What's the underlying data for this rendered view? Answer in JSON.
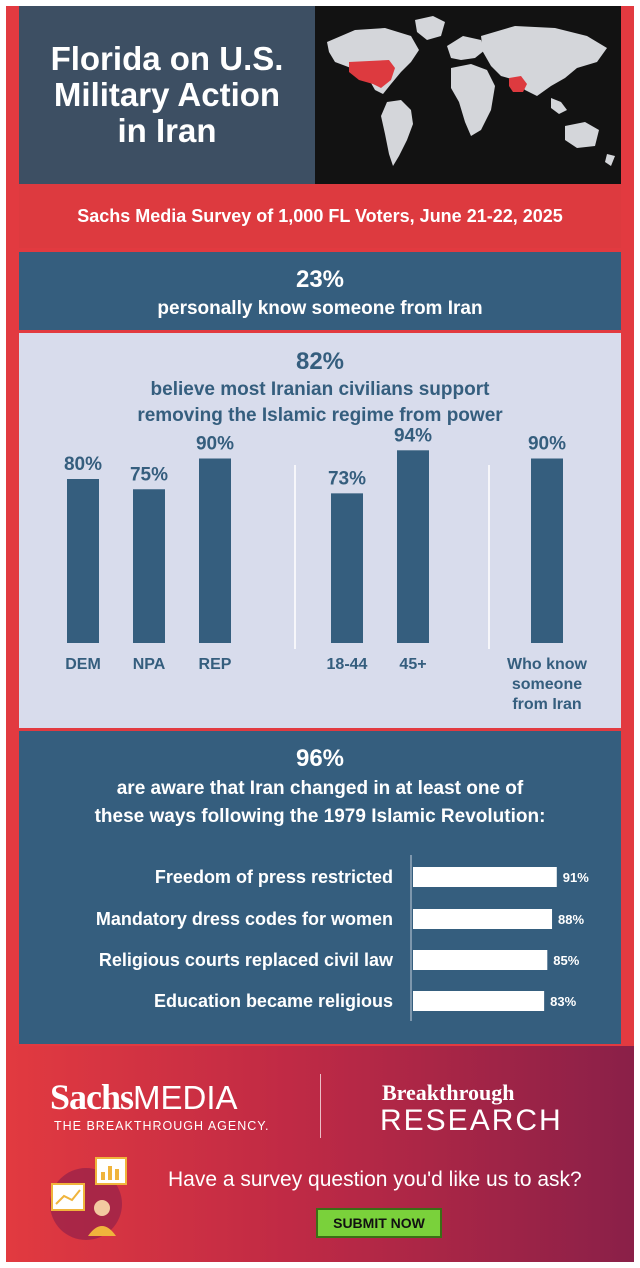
{
  "hero": {
    "title": "Florida on U.S. Military Action in Iran"
  },
  "survey": "Sachs Media Survey of 1,000 FL Voters, June 21-22, 2025",
  "stat1": {
    "value": "23%",
    "text": "personally know someone from Iran"
  },
  "stat2": {
    "value": "82%",
    "text_line1": "believe most Iranian civilians support",
    "text_line2": "removing the Islamic regime from power"
  },
  "stat3": {
    "value": "96%",
    "text_line1": "are aware that Iran changed in at least one of",
    "text_line2": "these ways following the 1979 Islamic Revolution:"
  },
  "chart_data": [
    {
      "type": "bar",
      "orientation": "vertical",
      "categories": [
        "DEM",
        "NPA",
        "REP",
        "18-44",
        "45+",
        "Who know someone from Iran"
      ],
      "category_lines": [
        [
          "DEM"
        ],
        [
          "NPA"
        ],
        [
          "REP"
        ],
        [
          "18-44"
        ],
        [
          "45+"
        ],
        [
          "Who know",
          "someone",
          "from Iran"
        ]
      ],
      "values": [
        80,
        75,
        90,
        73,
        94,
        90
      ],
      "value_labels": [
        "80%",
        "75%",
        "90%",
        "73%",
        "94%",
        "90%"
      ],
      "groups": [
        [
          "DEM",
          "NPA",
          "REP"
        ],
        [
          "18-44",
          "45+"
        ],
        [
          "Who know someone from Iran"
        ]
      ],
      "ylim": [
        0,
        100
      ],
      "color": "#355e7e"
    },
    {
      "type": "bar",
      "orientation": "horizontal",
      "categories": [
        "Freedom of press restricted",
        "Mandatory dress codes for women",
        "Religious courts replaced civil law",
        "Education became religious"
      ],
      "values": [
        91,
        88,
        85,
        83
      ],
      "value_labels": [
        "91%",
        "88%",
        "85%",
        "83%"
      ],
      "color": "#ffffff"
    }
  ],
  "footer": {
    "brand_a": "Sachs",
    "brand_b": "MEDIA",
    "tagline": "THE BREAKTHROUGH AGENCY.",
    "partner_line1": "Breakthrough",
    "partner_line2": "RESEARCH",
    "ask": "Have a survey question you'd like us to ask?",
    "submit": "SUBMIT NOW"
  },
  "colors": {
    "red": "#e23a40",
    "blue": "#355e7e",
    "dark": "#3d4f63",
    "light": "#d8dcec",
    "green": "#7ad13b"
  },
  "icons": [
    "world-map-icon",
    "survey-illustration-icon"
  ]
}
